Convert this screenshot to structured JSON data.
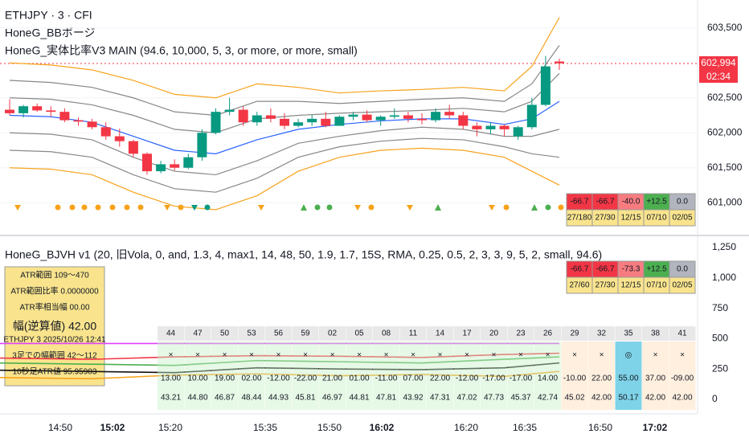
{
  "header": {
    "line1": "ETHJPY · 3 · CFI",
    "line2": "HoneG_BBボージ",
    "line3": "HoneG_実体比率V3 MAIN (94.6, 10,000, 5, 3, or more, or more, small)"
  },
  "price": {
    "ylim": [
      600600,
      603900
    ],
    "yticks": [
      {
        "value": 603500,
        "label": "603,500"
      },
      {
        "value": 602500,
        "label": "602,500"
      },
      {
        "value": 602000,
        "label": "602,000"
      },
      {
        "value": 601500,
        "label": "601,500"
      },
      {
        "value": 601000,
        "label": "601,000"
      }
    ],
    "last": {
      "value": 602994,
      "label": "602,994"
    },
    "countdown": "02:34",
    "up_color": "#089981",
    "down_color": "#f23645",
    "candles": [
      [
        602330,
        602480,
        602250,
        602280
      ],
      [
        602280,
        602400,
        602220,
        602380
      ],
      [
        602380,
        602420,
        602300,
        602320
      ],
      [
        602320,
        602380,
        602230,
        602300
      ],
      [
        602300,
        602350,
        602150,
        602180
      ],
      [
        602180,
        602220,
        602100,
        602160
      ],
      [
        602160,
        602200,
        602050,
        602080
      ],
      [
        602080,
        602150,
        601900,
        601950
      ],
      [
        601950,
        602060,
        601800,
        601880
      ],
      [
        601880,
        601900,
        601650,
        601700
      ],
      [
        601700,
        601720,
        601400,
        601450
      ],
      [
        601450,
        601600,
        601420,
        601550
      ],
      [
        601550,
        601620,
        601460,
        601500
      ],
      [
        601500,
        601700,
        601480,
        601650
      ],
      [
        601650,
        602050,
        601600,
        602000
      ],
      [
        602000,
        602350,
        601980,
        602300
      ],
      [
        602300,
        602500,
        602250,
        602330
      ],
      [
        602330,
        602380,
        602100,
        602150
      ],
      [
        602150,
        602300,
        602100,
        602250
      ],
      [
        602250,
        602350,
        602150,
        602200
      ],
      [
        602200,
        602280,
        602050,
        602100
      ],
      [
        602100,
        602200,
        602080,
        602150
      ],
      [
        602150,
        602250,
        602100,
        602200
      ],
      [
        602200,
        602300,
        602080,
        602100
      ],
      [
        602100,
        602250,
        602100,
        602230
      ],
      [
        602230,
        602300,
        602180,
        602260
      ],
      [
        602260,
        602320,
        602150,
        602180
      ],
      [
        602180,
        602250,
        602100,
        602230
      ],
      [
        602230,
        602350,
        602200,
        602250
      ],
      [
        602250,
        602300,
        602150,
        602200
      ],
      [
        602200,
        602280,
        602120,
        602180
      ],
      [
        602180,
        602350,
        602150,
        602300
      ],
      [
        602300,
        602400,
        602200,
        602250
      ],
      [
        602250,
        602300,
        602050,
        602100
      ],
      [
        602100,
        602150,
        601950,
        602050
      ],
      [
        602050,
        602150,
        601980,
        602100
      ],
      [
        602100,
        602120,
        601950,
        602050
      ],
      [
        601950,
        602100,
        601900,
        602080
      ],
      [
        602080,
        602500,
        602050,
        602400
      ],
      [
        602400,
        603100,
        602380,
        602950
      ],
      [
        603020,
        603060,
        602900,
        602994
      ]
    ],
    "band_index": [
      0,
      3,
      6,
      9,
      12,
      15,
      18,
      21,
      24,
      27,
      30,
      33,
      36,
      38,
      40
    ],
    "bands": [
      {
        "color": "#2962ff",
        "values": [
          602250,
          602230,
          602150,
          601950,
          601750,
          601700,
          601900,
          602050,
          602120,
          602170,
          602200,
          602200,
          602120,
          602200,
          602450
        ]
      },
      {
        "color": "#888888",
        "values": [
          602500,
          602480,
          602400,
          602250,
          602050,
          602000,
          602200,
          602250,
          602280,
          602300,
          602320,
          602350,
          602300,
          602450,
          602850
        ]
      },
      {
        "color": "#888888",
        "values": [
          602000,
          601980,
          601900,
          601650,
          601450,
          601400,
          601600,
          601850,
          601950,
          602030,
          602080,
          602050,
          601950,
          601950,
          602050
        ]
      },
      {
        "color": "#888888",
        "values": [
          602750,
          602720,
          602650,
          602500,
          602300,
          602250,
          602450,
          602450,
          602420,
          602450,
          602480,
          602500,
          602450,
          602700,
          603250
        ]
      },
      {
        "color": "#888888",
        "values": [
          601750,
          601730,
          601650,
          601400,
          601200,
          601150,
          601350,
          601650,
          601800,
          601880,
          601920,
          601900,
          601800,
          601700,
          601650
        ]
      },
      {
        "color": "#f7a21b",
        "values": [
          603000,
          602970,
          602900,
          602750,
          602550,
          602500,
          602700,
          602650,
          602570,
          602600,
          602620,
          602650,
          602600,
          602950,
          603650
        ]
      },
      {
        "color": "#f7a21b",
        "values": [
          601500,
          601480,
          601400,
          601150,
          600950,
          600900,
          601100,
          601450,
          601650,
          601750,
          601780,
          601750,
          601650,
          601450,
          601250
        ]
      }
    ]
  },
  "top_table": {
    "rows": [
      [
        "-66.7",
        "-66.7",
        "-40.0",
        "+12.5",
        "0.0"
      ],
      [
        "27/180",
        "27/30",
        "12/15",
        "07/10",
        "02/05"
      ]
    ]
  },
  "lower": {
    "title": "HoneG_BJVH v1 (20, 旧Vola, 0, and, 1.3, 4, max1, 14, 48, 50, 1.9, 1.7, 15S, RMA, 0.25, 0.5, 2, 3, 3, 9, 5, 2, small, 94.6)",
    "ylim": [
      -130,
      1400
    ],
    "yticks": [
      {
        "value": 1250,
        "label": "1,250"
      },
      {
        "value": 1000,
        "label": "1,000"
      },
      750,
      500,
      250,
      0
    ],
    "table": {
      "rows": [
        [
          "-66.7",
          "-66.7",
          "-73.3",
          "+12.5",
          "0.0"
        ],
        [
          "27/60",
          "27/30",
          "12/15",
          "07/10",
          "02/05"
        ]
      ]
    },
    "info": [
      "ATR範囲 109〜470",
      "ATR範囲比率 0.0000000",
      "ATR率相当幅 00.00",
      "幅(逆算値) 42.00",
      "ETHJPY 3 2025/10/26 12:41",
      "3足での幅範囲 42〜112",
      "10秒足ATR値 95.95903"
    ],
    "line_index": [
      0,
      6,
      12,
      18,
      24,
      30,
      36,
      40
    ],
    "lines": [
      {
        "color": "#e040fb",
        "values": [
          460,
          460,
          460,
          460,
          460,
          460,
          460,
          460
        ]
      },
      {
        "color": "#4caf50",
        "values": [
          300,
          290,
          280,
          320,
          310,
          300,
          330,
          350
        ]
      },
      {
        "color": "#111111",
        "values": [
          240,
          230,
          220,
          260,
          250,
          245,
          260,
          300
        ]
      },
      {
        "color": "#f23645",
        "values": [
          340,
          330,
          350,
          360,
          355,
          345,
          370,
          380
        ]
      },
      {
        "color": "#f7a21b",
        "values": [
          180,
          170,
          200,
          210,
          195,
          205,
          190,
          230
        ]
      }
    ],
    "grid": {
      "header": [
        "44",
        "47",
        "50",
        "53",
        "56",
        "59",
        "02",
        "05",
        "08",
        "11",
        "14",
        "17",
        "20",
        "23",
        "26",
        "29",
        "32",
        "35",
        "38",
        "41"
      ],
      "marks": [
        "×",
        "×",
        "×",
        "×",
        "×",
        "×",
        "×",
        "×",
        "×",
        "×",
        "×",
        "×",
        "×",
        "×",
        "×",
        "×",
        "×",
        "◎",
        "×",
        "×"
      ],
      "diff": [
        "13.00",
        "10.00",
        "19.00",
        "02.00",
        "-12.00",
        "-22.00",
        "21.00",
        "01.00",
        "-11.00",
        "07.00",
        "22.00",
        "-12.00",
        "-17.00",
        "-17.00",
        "14.00",
        "-10.00",
        "22.00",
        "55.00",
        "37.00",
        "-09.00"
      ],
      "ratio": [
        "43.21",
        "44.80",
        "46.87",
        "48.44",
        "44.93",
        "45.81",
        "46.97",
        "44.81",
        "47.81",
        "43.92",
        "47.31",
        "47.02",
        "47.73",
        "45.37",
        "42.74",
        "45.02",
        "42.00",
        "50.17",
        "42.00",
        "42.00"
      ]
    }
  },
  "time_axis": [
    "14:50",
    "15:02",
    "15:20",
    "15:35",
    "15:50",
    "16:02",
    "16:20",
    "16:35",
    "16:50",
    "17:02"
  ]
}
